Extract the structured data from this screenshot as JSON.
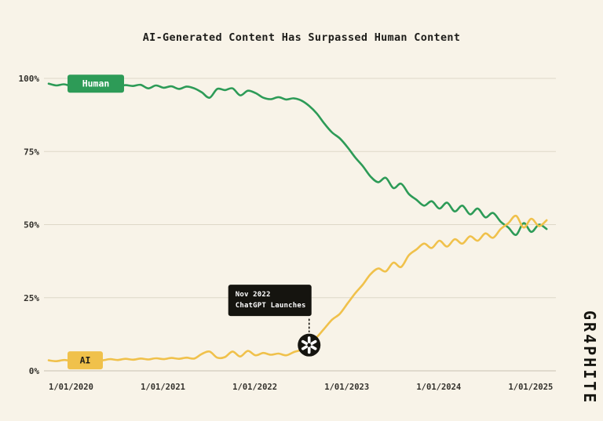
{
  "title": "AI-Generated Content Has Surpassed Human Content",
  "brand": "GR4PHITE",
  "chart_data": {
    "type": "line",
    "title": "AI-Generated Content Has Surpassed Human Content",
    "x_unit": "monthly samples starting 2020-01",
    "x_start_year": 2020,
    "points_per_year": 12,
    "x_tick_labels": [
      "1/01/2020",
      "1/01/2021",
      "1/01/2022",
      "1/01/2023",
      "1/01/2024",
      "1/01/2025"
    ],
    "y_tick_labels": [
      "0%",
      "25%",
      "50%",
      "75%",
      "100%"
    ],
    "y_ticks": [
      0,
      25,
      50,
      75,
      100
    ],
    "ylim": [
      0,
      100
    ],
    "grid": "horizontal",
    "legend_position": "on-line-start-badges",
    "colors": {
      "background": "#f8f3e8",
      "grid": "#ded7c7",
      "text": "#33312c",
      "annotation_bg": "#15140f"
    },
    "series": [
      {
        "name": "Human",
        "color": "#2d9b57",
        "label_color": "#ffffff",
        "values": [
          98.2,
          97.6,
          98.0,
          97.4,
          98.1,
          97.5,
          97.9,
          97.3,
          97.8,
          97.2,
          97.7,
          97.4,
          97.8,
          96.6,
          97.6,
          96.8,
          97.3,
          96.4,
          97.2,
          96.6,
          95.2,
          93.4,
          96.4,
          96.0,
          96.6,
          94.2,
          95.8,
          95.0,
          93.4,
          92.9,
          93.6,
          92.8,
          93.2,
          92.4,
          90.6,
          88.0,
          84.5,
          81.5,
          79.5,
          76.5,
          73.0,
          70.0,
          66.5,
          64.5,
          66.0,
          62.5,
          64.0,
          60.5,
          58.5,
          56.5,
          58.0,
          55.5,
          57.5,
          54.5,
          56.5,
          53.5,
          55.5,
          52.5,
          54.0,
          51.0,
          49.0,
          46.5,
          50.5,
          47.5,
          50.0,
          48.5
        ]
      },
      {
        "name": "AI",
        "color": "#f0c14b",
        "label_color": "#1f1e1a",
        "values": [
          3.6,
          3.3,
          3.7,
          3.4,
          3.8,
          3.5,
          3.9,
          3.6,
          4.0,
          3.7,
          4.1,
          3.8,
          4.2,
          3.9,
          4.3,
          4.0,
          4.4,
          4.1,
          4.5,
          4.2,
          5.8,
          6.6,
          4.5,
          4.7,
          6.6,
          4.9,
          6.8,
          5.3,
          6.1,
          5.5,
          5.9,
          5.3,
          6.4,
          7.2,
          8.8,
          11.5,
          14.5,
          17.5,
          19.5,
          23.0,
          26.5,
          29.5,
          33.0,
          35.0,
          34.0,
          37.0,
          35.5,
          39.5,
          41.5,
          43.5,
          42.0,
          44.5,
          42.5,
          45.0,
          43.5,
          46.0,
          44.5,
          47.0,
          45.5,
          48.5,
          50.5,
          53.0,
          49.0,
          52.0,
          49.5,
          51.5
        ]
      }
    ],
    "annotation": {
      "line1": "Nov 2022",
      "line2": "ChatGPT Launches",
      "x_year": 2022.833,
      "y_value": 8.8,
      "icon": "openai-logo"
    }
  }
}
